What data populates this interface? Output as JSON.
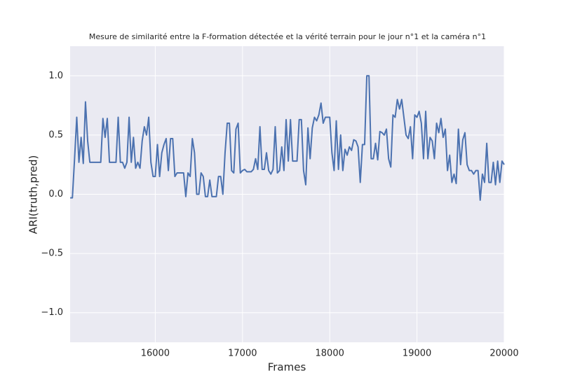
{
  "chart_data": {
    "type": "line",
    "title": "Mesure de similarité entre la F-formation détectée et la vérité terrain pour le jour n°1 et la caméra n°1",
    "x_label": "Frames",
    "y_label": "ARI(truth,pred)",
    "xlim": [
      15024,
      20000
    ],
    "ylim": [
      -1.25,
      1.25
    ],
    "xticks": [
      16000,
      17000,
      18000,
      19000,
      20000
    ],
    "yticks": [
      {
        "value": -1,
        "label": "−1.0"
      },
      {
        "value": -0.5,
        "label": "−0.5"
      },
      {
        "value": 0,
        "label": "0.0"
      },
      0.5,
      {
        "value": 1,
        "label": "1.0"
      }
    ],
    "grid": true,
    "x": [
      15025,
      15050,
      15075,
      15100,
      15125,
      15150,
      15175,
      15200,
      15225,
      15250,
      15275,
      15300,
      15325,
      15350,
      15375,
      15400,
      15425,
      15450,
      15475,
      15500,
      15525,
      15550,
      15575,
      15600,
      15625,
      15650,
      15675,
      15700,
      15725,
      15750,
      15775,
      15800,
      15825,
      15850,
      15875,
      15900,
      15925,
      15950,
      15975,
      16000,
      16025,
      16050,
      16075,
      16100,
      16125,
      16150,
      16175,
      16200,
      16225,
      16250,
      16275,
      16300,
      16325,
      16350,
      16375,
      16400,
      16425,
      16450,
      16475,
      16500,
      16525,
      16550,
      16575,
      16600,
      16625,
      16650,
      16675,
      16700,
      16725,
      16750,
      16775,
      16800,
      16825,
      16850,
      16875,
      16900,
      16925,
      16950,
      16975,
      17000,
      17025,
      17050,
      17075,
      17100,
      17125,
      17150,
      17175,
      17200,
      17225,
      17250,
      17275,
      17300,
      17325,
      17350,
      17375,
      17400,
      17425,
      17450,
      17475,
      17500,
      17525,
      17550,
      17575,
      17600,
      17625,
      17650,
      17675,
      17700,
      17725,
      17750,
      17775,
      17800,
      17825,
      17850,
      17875,
      17900,
      17925,
      17950,
      17975,
      18000,
      18025,
      18050,
      18075,
      18100,
      18125,
      18150,
      18175,
      18200,
      18225,
      18250,
      18275,
      18300,
      18325,
      18350,
      18375,
      18400,
      18425,
      18450,
      18475,
      18500,
      18525,
      18550,
      18575,
      18600,
      18625,
      18650,
      18675,
      18700,
      18725,
      18750,
      18775,
      18800,
      18825,
      18850,
      18875,
      18900,
      18925,
      18950,
      18975,
      19000,
      19025,
      19050,
      19075,
      19100,
      19125,
      19150,
      19175,
      19200,
      19225,
      19250,
      19275,
      19300,
      19325,
      19350,
      19375,
      19400,
      19425,
      19450,
      19475,
      19500,
      19525,
      19550,
      19575,
      19600,
      19625,
      19650,
      19675,
      19700,
      19725,
      19750,
      19775,
      19800,
      19825,
      19850,
      19875,
      19900,
      19925,
      19950,
      19975,
      20000
    ],
    "series": [
      {
        "color": "#4c72b0",
        "values": [
          -0.03,
          -0.03,
          0.3,
          0.65,
          0.27,
          0.48,
          0.26,
          0.78,
          0.45,
          0.27,
          0.27,
          0.27,
          0.27,
          0.27,
          0.27,
          0.64,
          0.48,
          0.64,
          0.27,
          0.27,
          0.27,
          0.27,
          0.65,
          0.27,
          0.27,
          0.22,
          0.27,
          0.65,
          0.27,
          0.48,
          0.22,
          0.27,
          0.22,
          0.45,
          0.57,
          0.5,
          0.65,
          0.27,
          0.15,
          0.15,
          0.42,
          0.15,
          0.35,
          0.42,
          0.47,
          0.2,
          0.47,
          0.47,
          0.15,
          0.18,
          0.18,
          0.18,
          0.18,
          -0.02,
          0.18,
          0.15,
          0.47,
          0.35,
          0.0,
          0.0,
          0.18,
          0.15,
          -0.02,
          -0.02,
          0.12,
          -0.02,
          -0.02,
          -0.02,
          0.15,
          0.15,
          0.0,
          0.35,
          0.6,
          0.6,
          0.2,
          0.18,
          0.55,
          0.6,
          0.18,
          0.2,
          0.21,
          0.19,
          0.19,
          0.19,
          0.21,
          0.3,
          0.21,
          0.57,
          0.21,
          0.21,
          0.35,
          0.2,
          0.17,
          0.21,
          0.57,
          0.18,
          0.2,
          0.4,
          0.2,
          0.63,
          0.28,
          0.63,
          0.28,
          0.28,
          0.28,
          0.63,
          0.63,
          0.2,
          0.08,
          0.56,
          0.3,
          0.56,
          0.65,
          0.62,
          0.67,
          0.77,
          0.6,
          0.65,
          0.65,
          0.65,
          0.35,
          0.2,
          0.62,
          0.21,
          0.5,
          0.2,
          0.38,
          0.33,
          0.4,
          0.37,
          0.46,
          0.45,
          0.4,
          0.1,
          0.42,
          0.42,
          1.0,
          1.0,
          0.3,
          0.3,
          0.43,
          0.29,
          0.53,
          0.52,
          0.5,
          0.55,
          0.3,
          0.23,
          0.67,
          0.65,
          0.8,
          0.72,
          0.8,
          0.65,
          0.5,
          0.47,
          0.57,
          0.3,
          0.67,
          0.65,
          0.7,
          0.6,
          0.3,
          0.7,
          0.3,
          0.48,
          0.45,
          0.3,
          0.6,
          0.52,
          0.64,
          0.48,
          0.55,
          0.2,
          0.33,
          0.1,
          0.17,
          0.09,
          0.55,
          0.25,
          0.46,
          0.52,
          0.25,
          0.2,
          0.2,
          0.17,
          0.2,
          0.2,
          -0.05,
          0.17,
          0.1,
          0.43,
          0.1,
          0.1,
          0.27,
          0.08,
          0.28,
          0.1,
          0.28,
          0.25
        ]
      }
    ]
  }
}
